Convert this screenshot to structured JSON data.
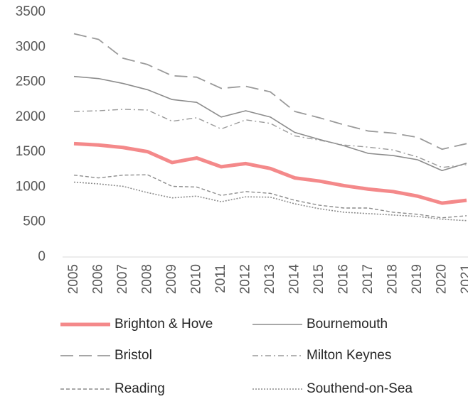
{
  "chart_data": {
    "type": "line",
    "categories": [
      "2005",
      "2006",
      "2007",
      "2008",
      "2009",
      "2010",
      "2011",
      "2012",
      "2013",
      "2014",
      "2015",
      "2016",
      "2017",
      "2018",
      "2019",
      "2020",
      "2021"
    ],
    "series": [
      {
        "name": "Brighton & Hove",
        "color": "#f4898a",
        "width": 5,
        "dash": "solid",
        "values": [
          1620,
          1600,
          1565,
          1505,
          1350,
          1415,
          1290,
          1335,
          1265,
          1130,
          1085,
          1020,
          970,
          935,
          870,
          770,
          810
        ]
      },
      {
        "name": "Bournemouth",
        "color": "#8c8c8c",
        "width": 1.6,
        "dash": "solid",
        "values": [
          2580,
          2550,
          2480,
          2390,
          2250,
          2210,
          2000,
          2090,
          2000,
          1780,
          1680,
          1590,
          1480,
          1450,
          1390,
          1235,
          1340
        ]
      },
      {
        "name": "Bristol",
        "color": "#9a9a9a",
        "width": 1.8,
        "dash": "long-dash",
        "values": [
          3190,
          3110,
          2840,
          2750,
          2590,
          2570,
          2410,
          2440,
          2360,
          2080,
          1990,
          1890,
          1800,
          1770,
          1710,
          1540,
          1620
        ]
      },
      {
        "name": "Milton Keynes",
        "color": "#9a9a9a",
        "width": 1.4,
        "dash": "dash-dot",
        "values": [
          2080,
          2090,
          2110,
          2100,
          1940,
          1990,
          1830,
          1960,
          1910,
          1730,
          1670,
          1600,
          1570,
          1530,
          1430,
          1280,
          1320
        ]
      },
      {
        "name": "Reading",
        "color": "#8c8c8c",
        "width": 1.4,
        "dash": "short-dash",
        "values": [
          1170,
          1130,
          1170,
          1175,
          1010,
          1000,
          880,
          935,
          910,
          810,
          740,
          700,
          700,
          640,
          610,
          560,
          590
        ]
      },
      {
        "name": "Southend-on-Sea",
        "color": "#8c8c8c",
        "width": 1.6,
        "dash": "dot",
        "values": [
          1070,
          1045,
          1010,
          920,
          845,
          870,
          790,
          860,
          855,
          760,
          690,
          640,
          620,
          600,
          580,
          540,
          520
        ]
      }
    ],
    "ylim": [
      0,
      3500
    ],
    "yticks": [
      0,
      500,
      1000,
      1500,
      2000,
      2500,
      3000,
      3500
    ],
    "grid": false,
    "legend": "bottom"
  }
}
